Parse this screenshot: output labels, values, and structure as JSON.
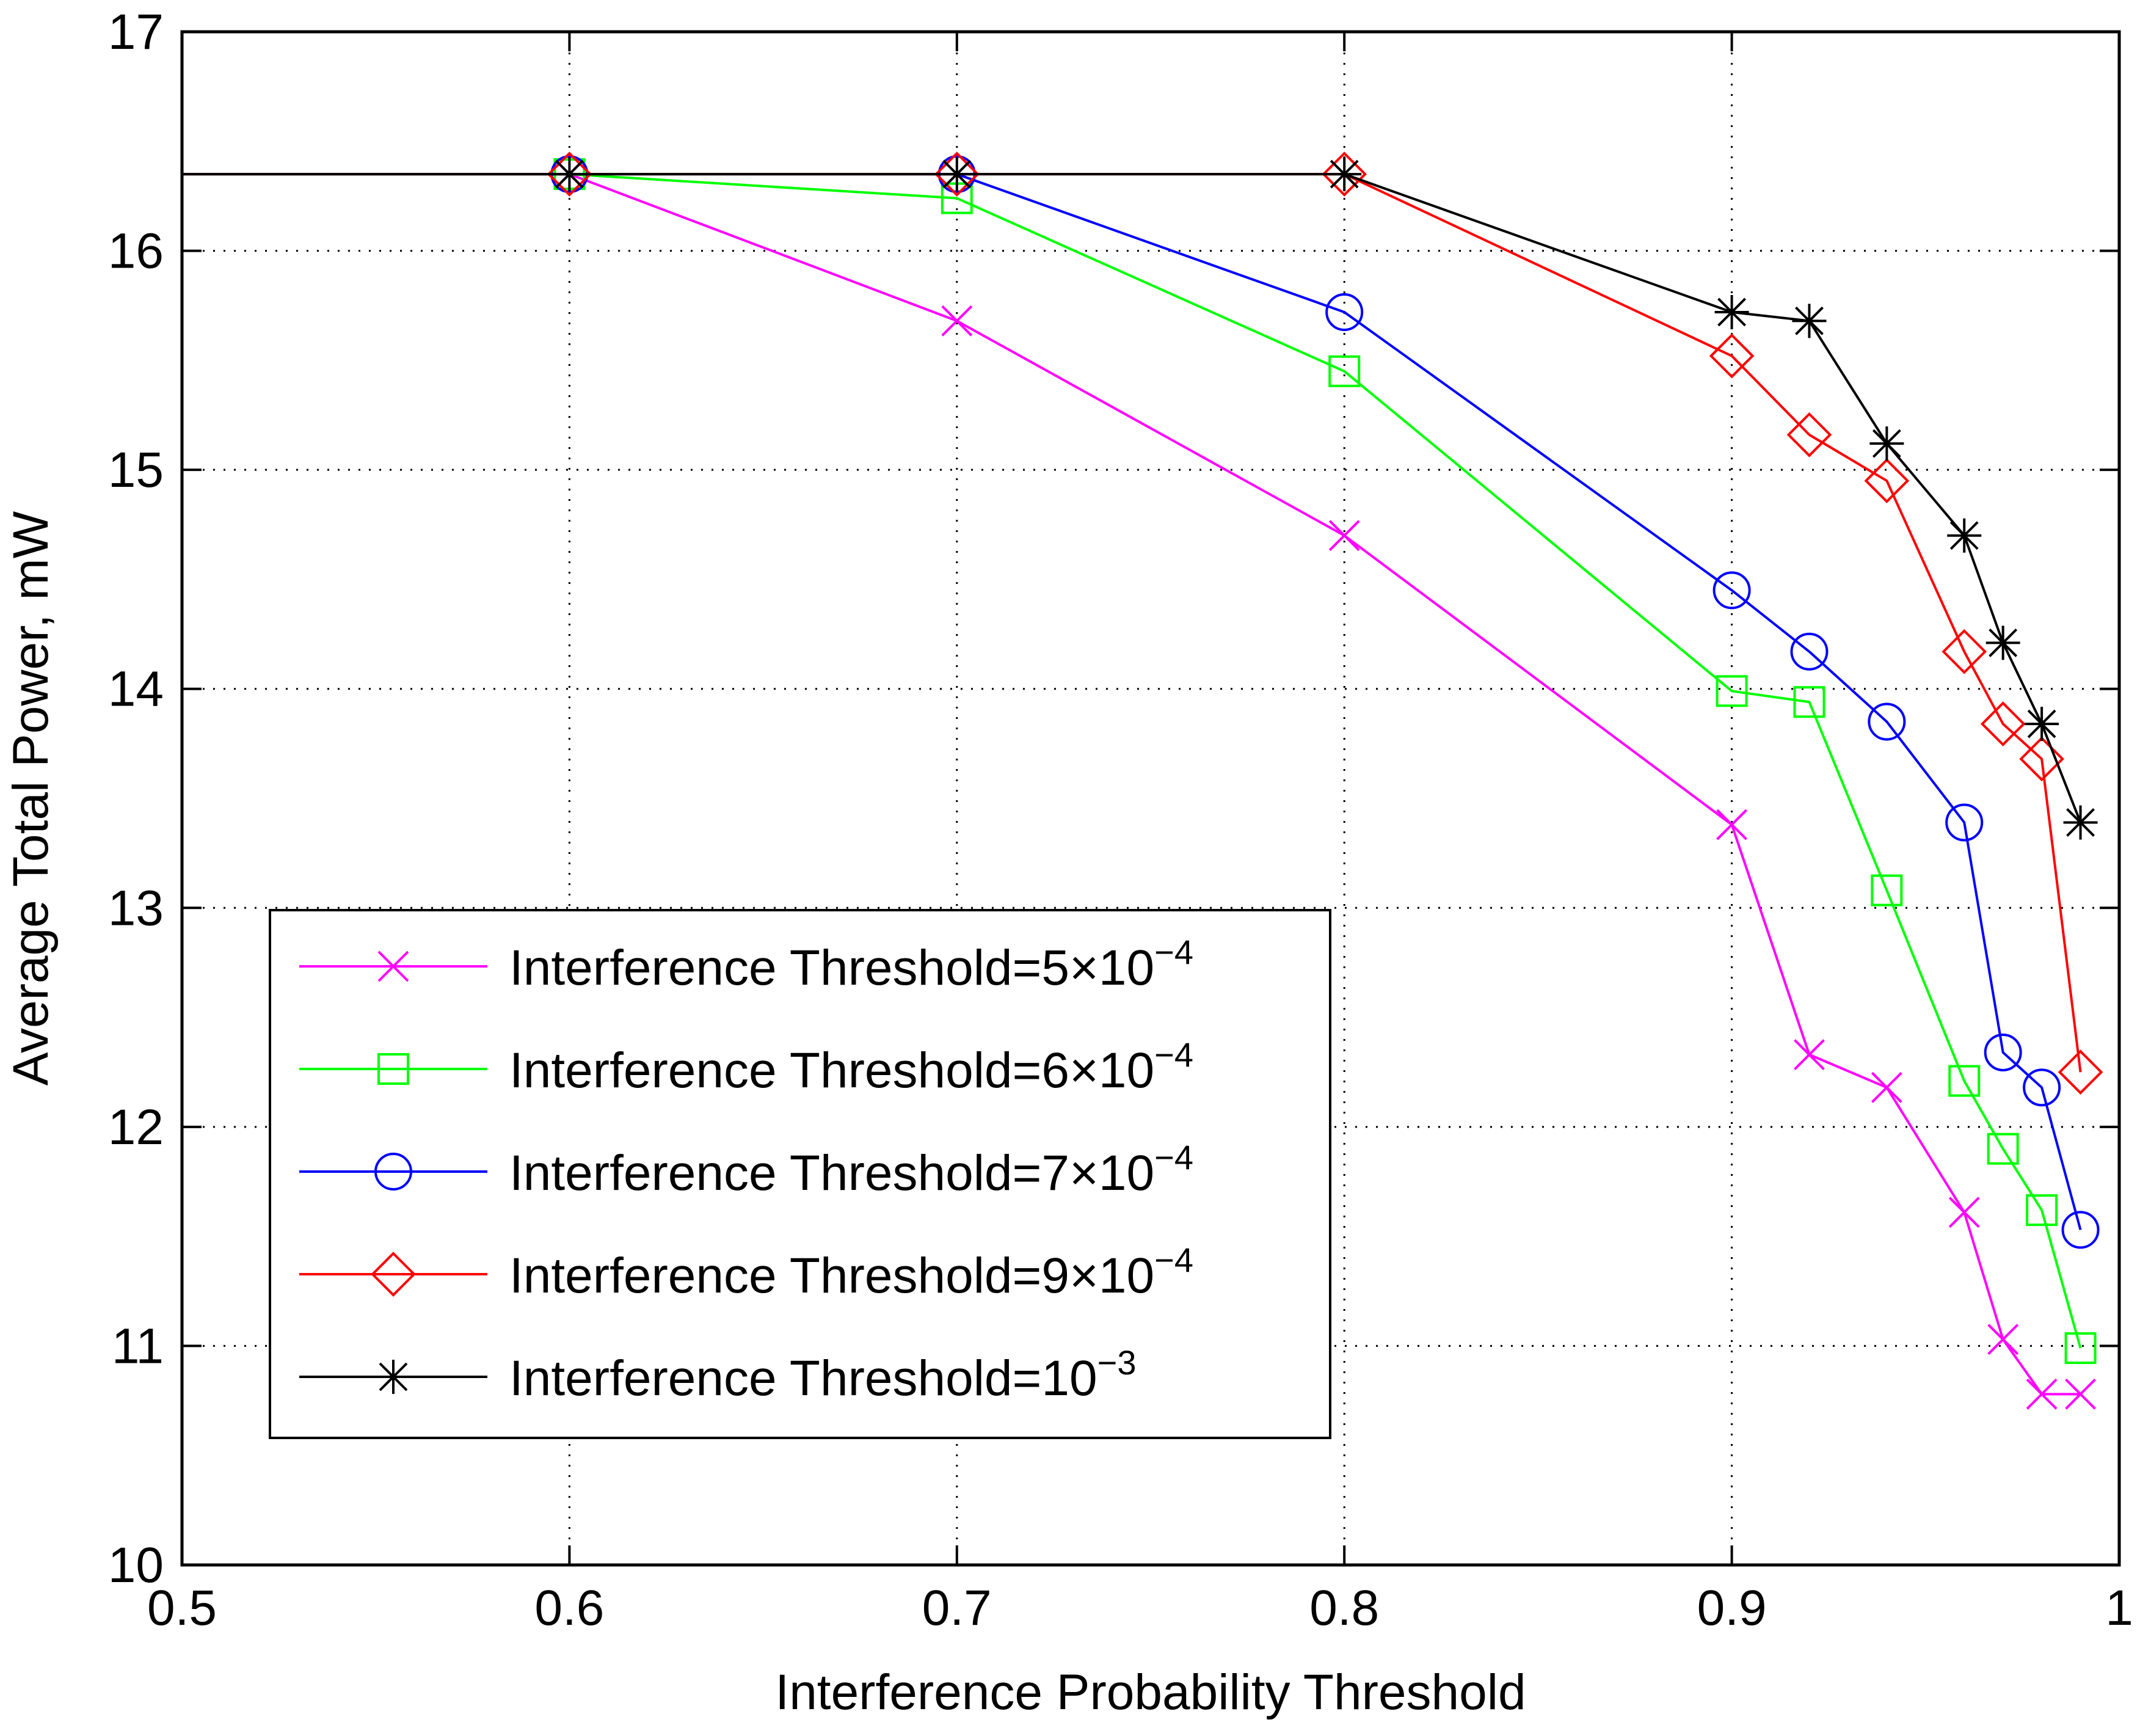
{
  "chart_data": {
    "type": "line",
    "title": "",
    "xlabel": "Interference Probability Threshold",
    "ylabel": "Average Total Power, mW",
    "xlim": [
      0.5,
      1.0
    ],
    "ylim": [
      10,
      17
    ],
    "xticks": [
      0.5,
      0.6,
      0.7,
      0.8,
      0.9,
      1.0
    ],
    "xtick_labels": [
      "0.5",
      "0.6",
      "0.7",
      "0.8",
      "0.9",
      "1"
    ],
    "yticks": [
      10,
      11,
      12,
      13,
      14,
      15,
      16,
      17
    ],
    "ytick_labels": [
      "10",
      "11",
      "12",
      "13",
      "14",
      "15",
      "16",
      "17"
    ],
    "grid": true,
    "legend_position": "lower-left",
    "series": [
      {
        "name": "Interference Threshold=5×10−4",
        "label_base": "Interference Threshold=5×10",
        "label_exp": "−4",
        "color": "#ff00ff",
        "marker": "x",
        "x": [
          0.5,
          0.6,
          0.7,
          0.8,
          0.9,
          0.92,
          0.94,
          0.96,
          0.97,
          0.98,
          0.99
        ],
        "values": [
          16.35,
          16.35,
          15.68,
          14.7,
          13.38,
          12.33,
          12.18,
          11.61,
          11.03,
          10.78,
          10.78
        ]
      },
      {
        "name": "Interference Threshold=6×10−4",
        "label_base": "Interference Threshold=6×10",
        "label_exp": "−4",
        "color": "#00ff00",
        "marker": "square",
        "x": [
          0.5,
          0.6,
          0.7,
          0.8,
          0.9,
          0.92,
          0.94,
          0.96,
          0.97,
          0.98,
          0.99
        ],
        "values": [
          16.35,
          16.35,
          16.24,
          15.45,
          13.99,
          13.94,
          13.08,
          12.21,
          11.9,
          11.62,
          10.99
        ]
      },
      {
        "name": "Interference Threshold=7×10−4",
        "label_base": "Interference Threshold=7×10",
        "label_exp": "−4",
        "color": "#0000ff",
        "marker": "circle",
        "x": [
          0.5,
          0.6,
          0.7,
          0.8,
          0.9,
          0.92,
          0.94,
          0.96,
          0.97,
          0.98,
          0.99
        ],
        "values": [
          16.35,
          16.35,
          16.35,
          15.72,
          14.45,
          14.17,
          13.85,
          13.39,
          12.34,
          12.18,
          11.53
        ]
      },
      {
        "name": "Interference Threshold=9×10−4",
        "label_base": "Interference Threshold=9×10",
        "label_exp": "−4",
        "color": "#ff0000",
        "marker": "diamond",
        "x": [
          0.5,
          0.6,
          0.7,
          0.8,
          0.9,
          0.92,
          0.94,
          0.96,
          0.97,
          0.98,
          0.99
        ],
        "values": [
          16.35,
          16.35,
          16.35,
          16.35,
          15.52,
          15.16,
          14.95,
          14.17,
          13.84,
          13.68,
          12.25
        ]
      },
      {
        "name": "Interference Threshold=10−3",
        "label_base": "Interference Threshold=10",
        "label_exp": "−3",
        "color": "#000000",
        "marker": "asterisk",
        "x": [
          0.5,
          0.6,
          0.7,
          0.8,
          0.9,
          0.92,
          0.94,
          0.96,
          0.97,
          0.98,
          0.99
        ],
        "values": [
          16.35,
          16.35,
          16.35,
          16.35,
          15.72,
          15.68,
          15.12,
          14.7,
          14.21,
          13.84,
          13.39
        ]
      }
    ]
  }
}
